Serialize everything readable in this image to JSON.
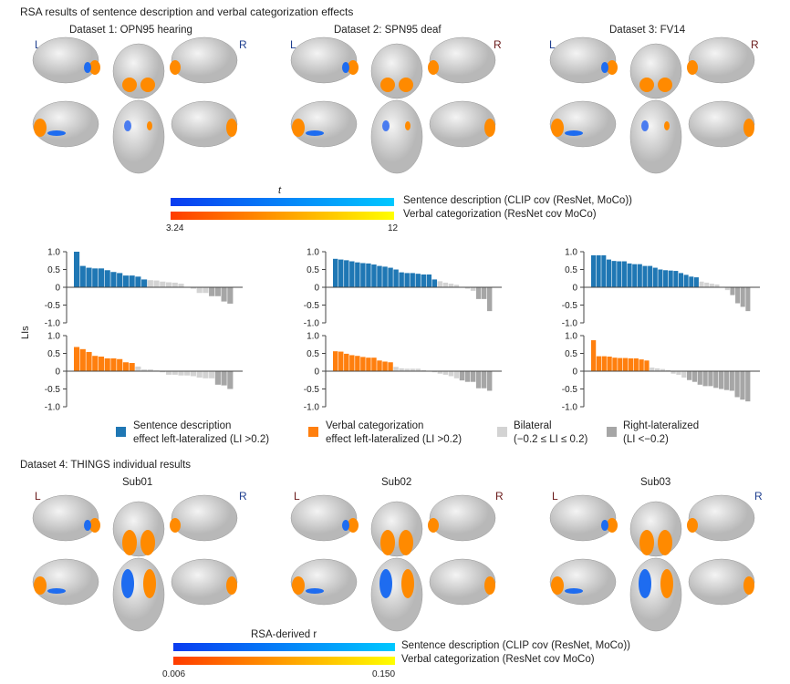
{
  "title": "RSA results of sentence description and verbal categorization effects",
  "datasets_top": [
    {
      "label": "Dataset 1: OPN95 hearing",
      "left": "L",
      "right": "R"
    },
    {
      "label": "Dataset 2: SPN95 deaf",
      "left": "L",
      "right": "R"
    },
    {
      "label": "Dataset 3: FV14",
      "left": "L",
      "right": "R"
    }
  ],
  "colorbar_top": {
    "var": "t",
    "blue_label": "Sentence description (CLIP cov (ResNet, MoCo))",
    "orange_label": "Verbal categorization (ResNet cov MoCo)",
    "min": "3.24",
    "max": "12"
  },
  "colors": {
    "blue": "#1f77b4",
    "orange": "#ff7f0e",
    "bilateral": "#d3d3d3",
    "right": "#a6a6a6",
    "blue_grad": [
      "#0a3cf0",
      "#00c8ff"
    ],
    "orange_grad": [
      "#ff3c00",
      "#ffff00"
    ]
  },
  "legend": [
    {
      "line1": "Sentence description",
      "line2": "effect left-lateralized (LI >0.2)",
      "color": "#1f77b4"
    },
    {
      "line1": "Verbal categorization",
      "line2": "effect left-lateralized (LI >0.2)",
      "color": "#ff7f0e"
    },
    {
      "line1": "Bilateral",
      "line2": "(−0.2 ≤ LI ≤ 0.2)",
      "color": "#d3d3d3"
    },
    {
      "line1": "Right-lateralized",
      "line2": "(LI <−0.2)",
      "color": "#a6a6a6"
    }
  ],
  "dataset4_title": "Dataset 4: THINGS individual results",
  "datasets_bottom": [
    {
      "label": "Sub01",
      "left": "L",
      "right": "R"
    },
    {
      "label": "Sub02",
      "left": "L",
      "right": "R"
    },
    {
      "label": "Sub03",
      "left": "L",
      "right": "R"
    }
  ],
  "colorbar_bottom": {
    "var": "RSA-derived r",
    "blue_label": "Sentence description (CLIP cov (ResNet, MoCo))",
    "orange_label": "Verbal categorization (ResNet cov MoCo)",
    "min": "0.006",
    "max": "0.150"
  },
  "chart_data": [
    {
      "type": "bar",
      "ylabel": "LIs",
      "ylim": [
        -1,
        1
      ],
      "yticks": [
        "1.0",
        "0.5",
        "0",
        "-0.5",
        "-1.0"
      ],
      "values": [
        1.0,
        0.6,
        0.55,
        0.53,
        0.53,
        0.48,
        0.43,
        0.4,
        0.33,
        0.33,
        0.3,
        0.22,
        0.2,
        0.19,
        0.16,
        0.14,
        0.13,
        0.1,
        0,
        -0.04,
        -0.16,
        -0.16,
        -0.25,
        -0.25,
        -0.4,
        -0.46
      ]
    },
    {
      "type": "bar",
      "ylabel": "LIs",
      "ylim": [
        -1,
        1
      ],
      "yticks": [
        "1.0",
        "0.5",
        "0",
        "-0.5",
        "-1.0"
      ],
      "values": [
        0.68,
        0.62,
        0.54,
        0.43,
        0.41,
        0.36,
        0.36,
        0.34,
        0.25,
        0.23,
        0.13,
        0.05,
        0.05,
        0.02,
        -0.03,
        -0.1,
        -0.1,
        -0.12,
        -0.12,
        -0.14,
        -0.18,
        -0.2,
        -0.2,
        -0.38,
        -0.4,
        -0.5
      ]
    },
    {
      "type": "bar",
      "ylim": [
        -1,
        1
      ],
      "yticks": [
        "1.0",
        "0.5",
        "0",
        "-0.5",
        "-1.0"
      ],
      "values": [
        0.8,
        0.78,
        0.76,
        0.73,
        0.7,
        0.68,
        0.67,
        0.64,
        0.6,
        0.58,
        0.55,
        0.5,
        0.42,
        0.4,
        0.4,
        0.38,
        0.36,
        0.36,
        0.22,
        0.17,
        0.13,
        0.1,
        0.07,
        0,
        -0.04,
        -0.1,
        -0.33,
        -0.33,
        -0.67
      ]
    },
    {
      "type": "bar",
      "ylim": [
        -1,
        1
      ],
      "yticks": [
        "1.0",
        "0.5",
        "0",
        "-0.5",
        "-1.0"
      ],
      "values": [
        0.56,
        0.55,
        0.49,
        0.45,
        0.43,
        0.4,
        0.38,
        0.38,
        0.3,
        0.27,
        0.25,
        0.12,
        0.08,
        0.07,
        0.07,
        0.07,
        0.03,
        0,
        -0.03,
        -0.07,
        -0.1,
        -0.14,
        -0.2,
        -0.26,
        -0.3,
        -0.3,
        -0.48,
        -0.48,
        -0.55
      ]
    },
    {
      "type": "bar",
      "ylim": [
        -1,
        1
      ],
      "yticks": [
        "1.0",
        "0.5",
        "0",
        "-0.5",
        "-1.0"
      ],
      "values": [
        0.9,
        0.9,
        0.9,
        0.78,
        0.74,
        0.73,
        0.73,
        0.67,
        0.65,
        0.65,
        0.6,
        0.6,
        0.55,
        0.5,
        0.48,
        0.47,
        0.46,
        0.4,
        0.35,
        0.3,
        0.28,
        0.16,
        0.13,
        0.1,
        0.08,
        0,
        -0.08,
        -0.22,
        -0.45,
        -0.55,
        -0.67
      ]
    },
    {
      "type": "bar",
      "ylim": [
        -1,
        1
      ],
      "yticks": [
        "1.0",
        "0.5",
        "0",
        "-0.5",
        "-1.0"
      ],
      "values": [
        0.87,
        0.42,
        0.42,
        0.41,
        0.38,
        0.37,
        0.37,
        0.36,
        0.36,
        0.33,
        0.3,
        0.1,
        0.08,
        0.06,
        0.03,
        -0.07,
        -0.1,
        -0.18,
        -0.25,
        -0.3,
        -0.38,
        -0.42,
        -0.42,
        -0.47,
        -0.5,
        -0.53,
        -0.55,
        -0.73,
        -0.8,
        -0.85
      ]
    }
  ]
}
